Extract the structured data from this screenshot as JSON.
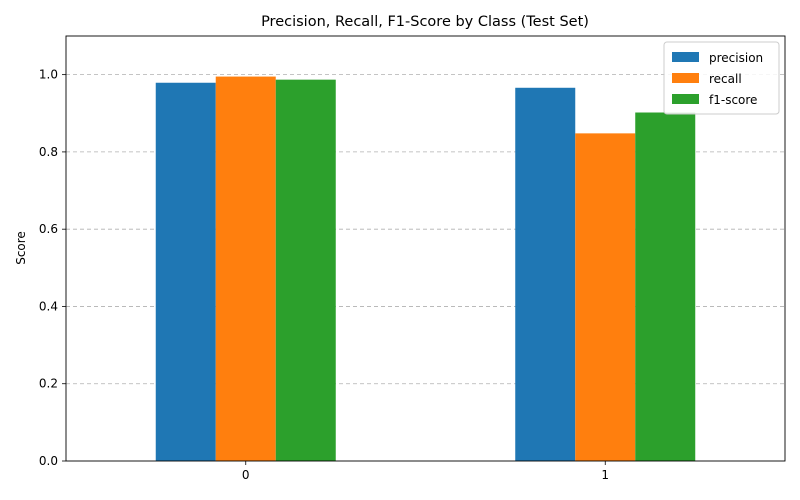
{
  "chart_data": {
    "type": "bar",
    "title": "Precision, Recall, F1-Score by Class (Test Set)",
    "xlabel": "",
    "ylabel": "Score",
    "categories": [
      "0",
      "1"
    ],
    "series": [
      {
        "name": "precision",
        "color": "#1f77b4",
        "values": [
          0.979,
          0.966
        ]
      },
      {
        "name": "recall",
        "color": "#ff7f0e",
        "values": [
          0.995,
          0.848
        ]
      },
      {
        "name": "f1-score",
        "color": "#2ca02c",
        "values": [
          0.987,
          0.902
        ]
      }
    ],
    "ylim": [
      0,
      1.1
    ],
    "yticks": [
      "0.0",
      "0.2",
      "0.4",
      "0.6",
      "0.8",
      "1.0"
    ],
    "grid": "y-dashed",
    "legend_position": "top-right"
  }
}
